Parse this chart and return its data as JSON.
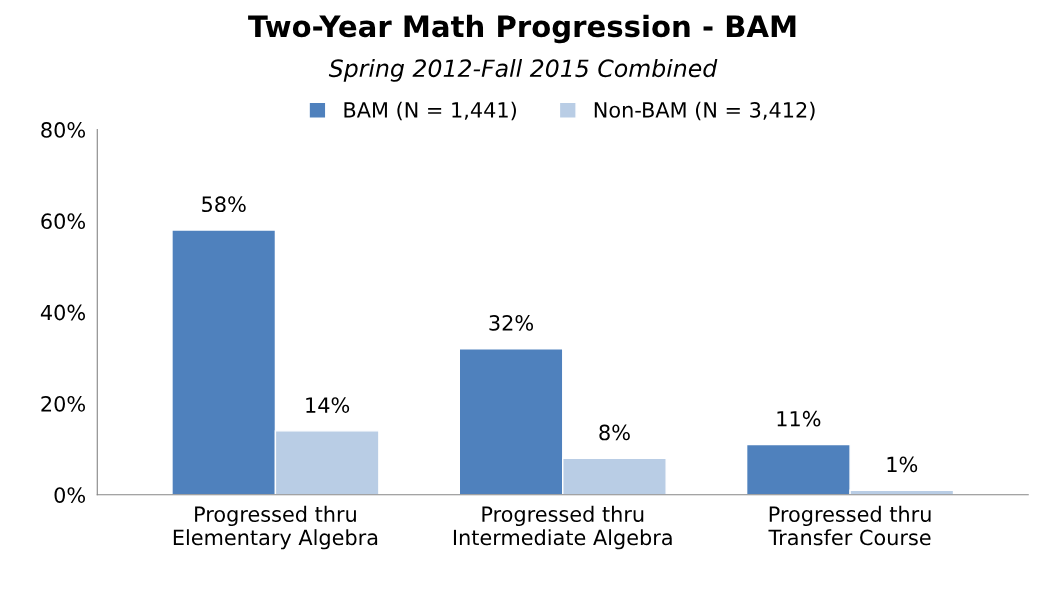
{
  "chart_data": {
    "type": "bar",
    "title": "Two-Year Math Progression - BAM",
    "subtitle": "Spring 2012-Fall 2015 Combined",
    "categories": [
      "Progressed thru\nElementary Algebra",
      "Progressed thru\nIntermediate Algebra",
      "Progressed thru\nTransfer Course"
    ],
    "series": [
      {
        "name": "BAM (N = 1,441)",
        "color": "#4f81bd",
        "values": [
          58,
          32,
          11
        ],
        "value_labels": [
          "58%",
          "32%",
          "11%"
        ]
      },
      {
        "name": "Non-BAM (N = 3,412)",
        "color": "#b9cde5",
        "values": [
          14,
          8,
          1
        ],
        "value_labels": [
          "14%",
          "8%",
          "1%"
        ]
      }
    ],
    "ylim": [
      0,
      80
    ],
    "yticks": [
      {
        "value": 0,
        "label": "0%"
      },
      {
        "value": 20,
        "label": "20%"
      },
      {
        "value": 40,
        "label": "40%"
      },
      {
        "value": 60,
        "label": "60%"
      },
      {
        "value": 80,
        "label": "80%"
      }
    ],
    "grid": false,
    "legend": "top"
  }
}
